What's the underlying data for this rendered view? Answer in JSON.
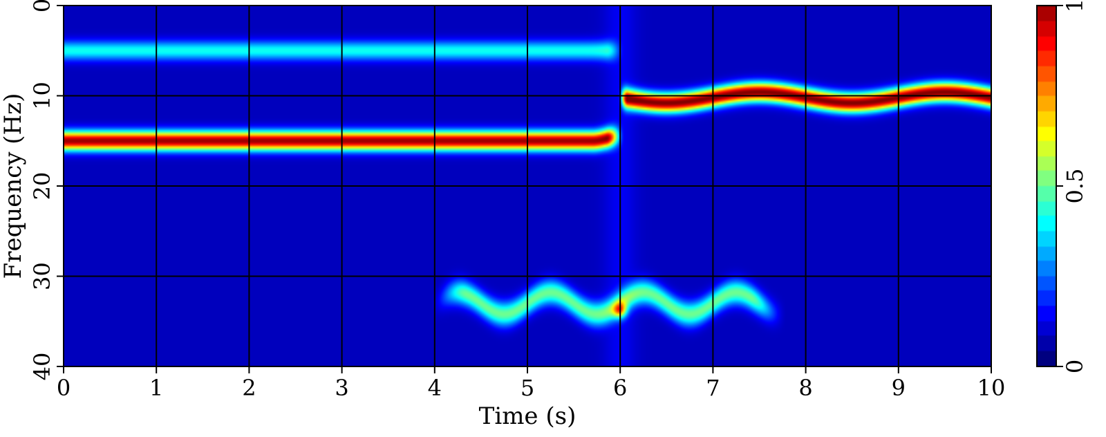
{
  "chart_data": {
    "type": "heatmap",
    "xlabel": "Time (s)",
    "ylabel": "Frequency (Hz)",
    "xlim": [
      0,
      10
    ],
    "ylim": [
      0,
      40
    ],
    "y_axis_direction": "increasing downward",
    "x_ticks": [
      "0",
      "1",
      "2",
      "3",
      "4",
      "5",
      "6",
      "7",
      "8",
      "9",
      "10"
    ],
    "y_ticks": [
      "0",
      "10",
      "20",
      "30",
      "40"
    ],
    "grid": "on",
    "colormap": "jet",
    "colorbar": {
      "range": [
        0,
        1
      ],
      "ticks": [
        "0",
        "0.5",
        "1"
      ],
      "placement": "right"
    },
    "background_color": "#00008f",
    "series": [
      {
        "time_range": [
          0,
          6
        ],
        "frequency_hz": 5,
        "peak_value": 0.35
      },
      {
        "time_range": [
          0,
          6
        ],
        "frequency_hz": 15,
        "peak_value": 0.97
      },
      {
        "time_range": [
          6,
          10
        ],
        "frequency_center_hz": 10.2,
        "modulation_amplitude_hz": 0.6,
        "modulation_period_s": 2,
        "peak_value": 1.0
      },
      {
        "time_range": [
          4,
          7.7
        ],
        "frequency_center_hz": 33,
        "modulation_amplitude_hz": 1.2,
        "modulation_period_s": 1,
        "peak_value": 0.45
      },
      {
        "note_time_s": 6,
        "frequency_hz": 33.8,
        "peak_value": 0.9
      }
    ]
  }
}
